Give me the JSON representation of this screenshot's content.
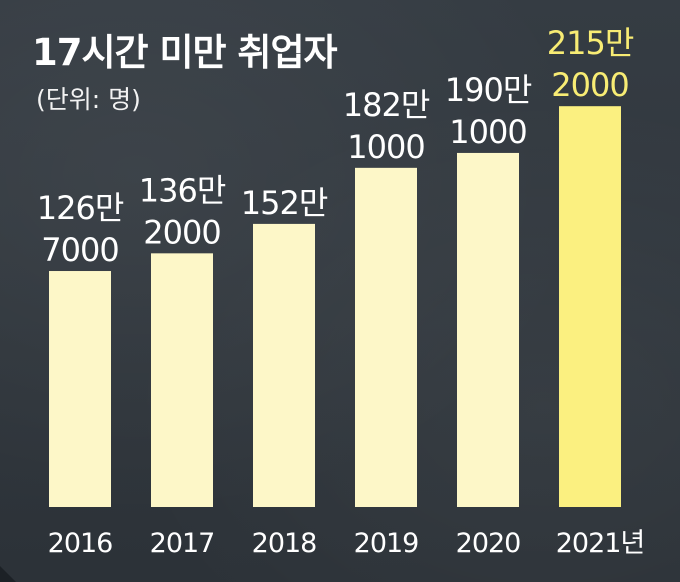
{
  "title": "17시간 미만 취업자",
  "subtitle": "(단위: 명)",
  "colors": {
    "background": "#2f353b",
    "bar": "#fdf7c8",
    "bar_highlight": "#fbf080",
    "label": "#ffffff",
    "label_highlight": "#f8ec74"
  },
  "chart_data": {
    "type": "bar",
    "title": "17시간 미만 취업자",
    "subtitle": "(단위: 명)",
    "categories": [
      "2016",
      "2017",
      "2018",
      "2019",
      "2020",
      "2021년"
    ],
    "values": [
      1267000,
      1362000,
      1520000,
      1821000,
      1901000,
      2152000
    ],
    "value_labels": [
      [
        "126만",
        "7000"
      ],
      [
        "136만",
        "2000"
      ],
      [
        "152만"
      ],
      [
        "182만",
        "1000"
      ],
      [
        "190만",
        "1000"
      ],
      [
        "215만",
        "2000"
      ]
    ],
    "highlight_index": 5,
    "xlabel": "",
    "ylabel": "",
    "ylim": [
      0,
      2400000
    ],
    "grid": false,
    "legend": "none"
  }
}
